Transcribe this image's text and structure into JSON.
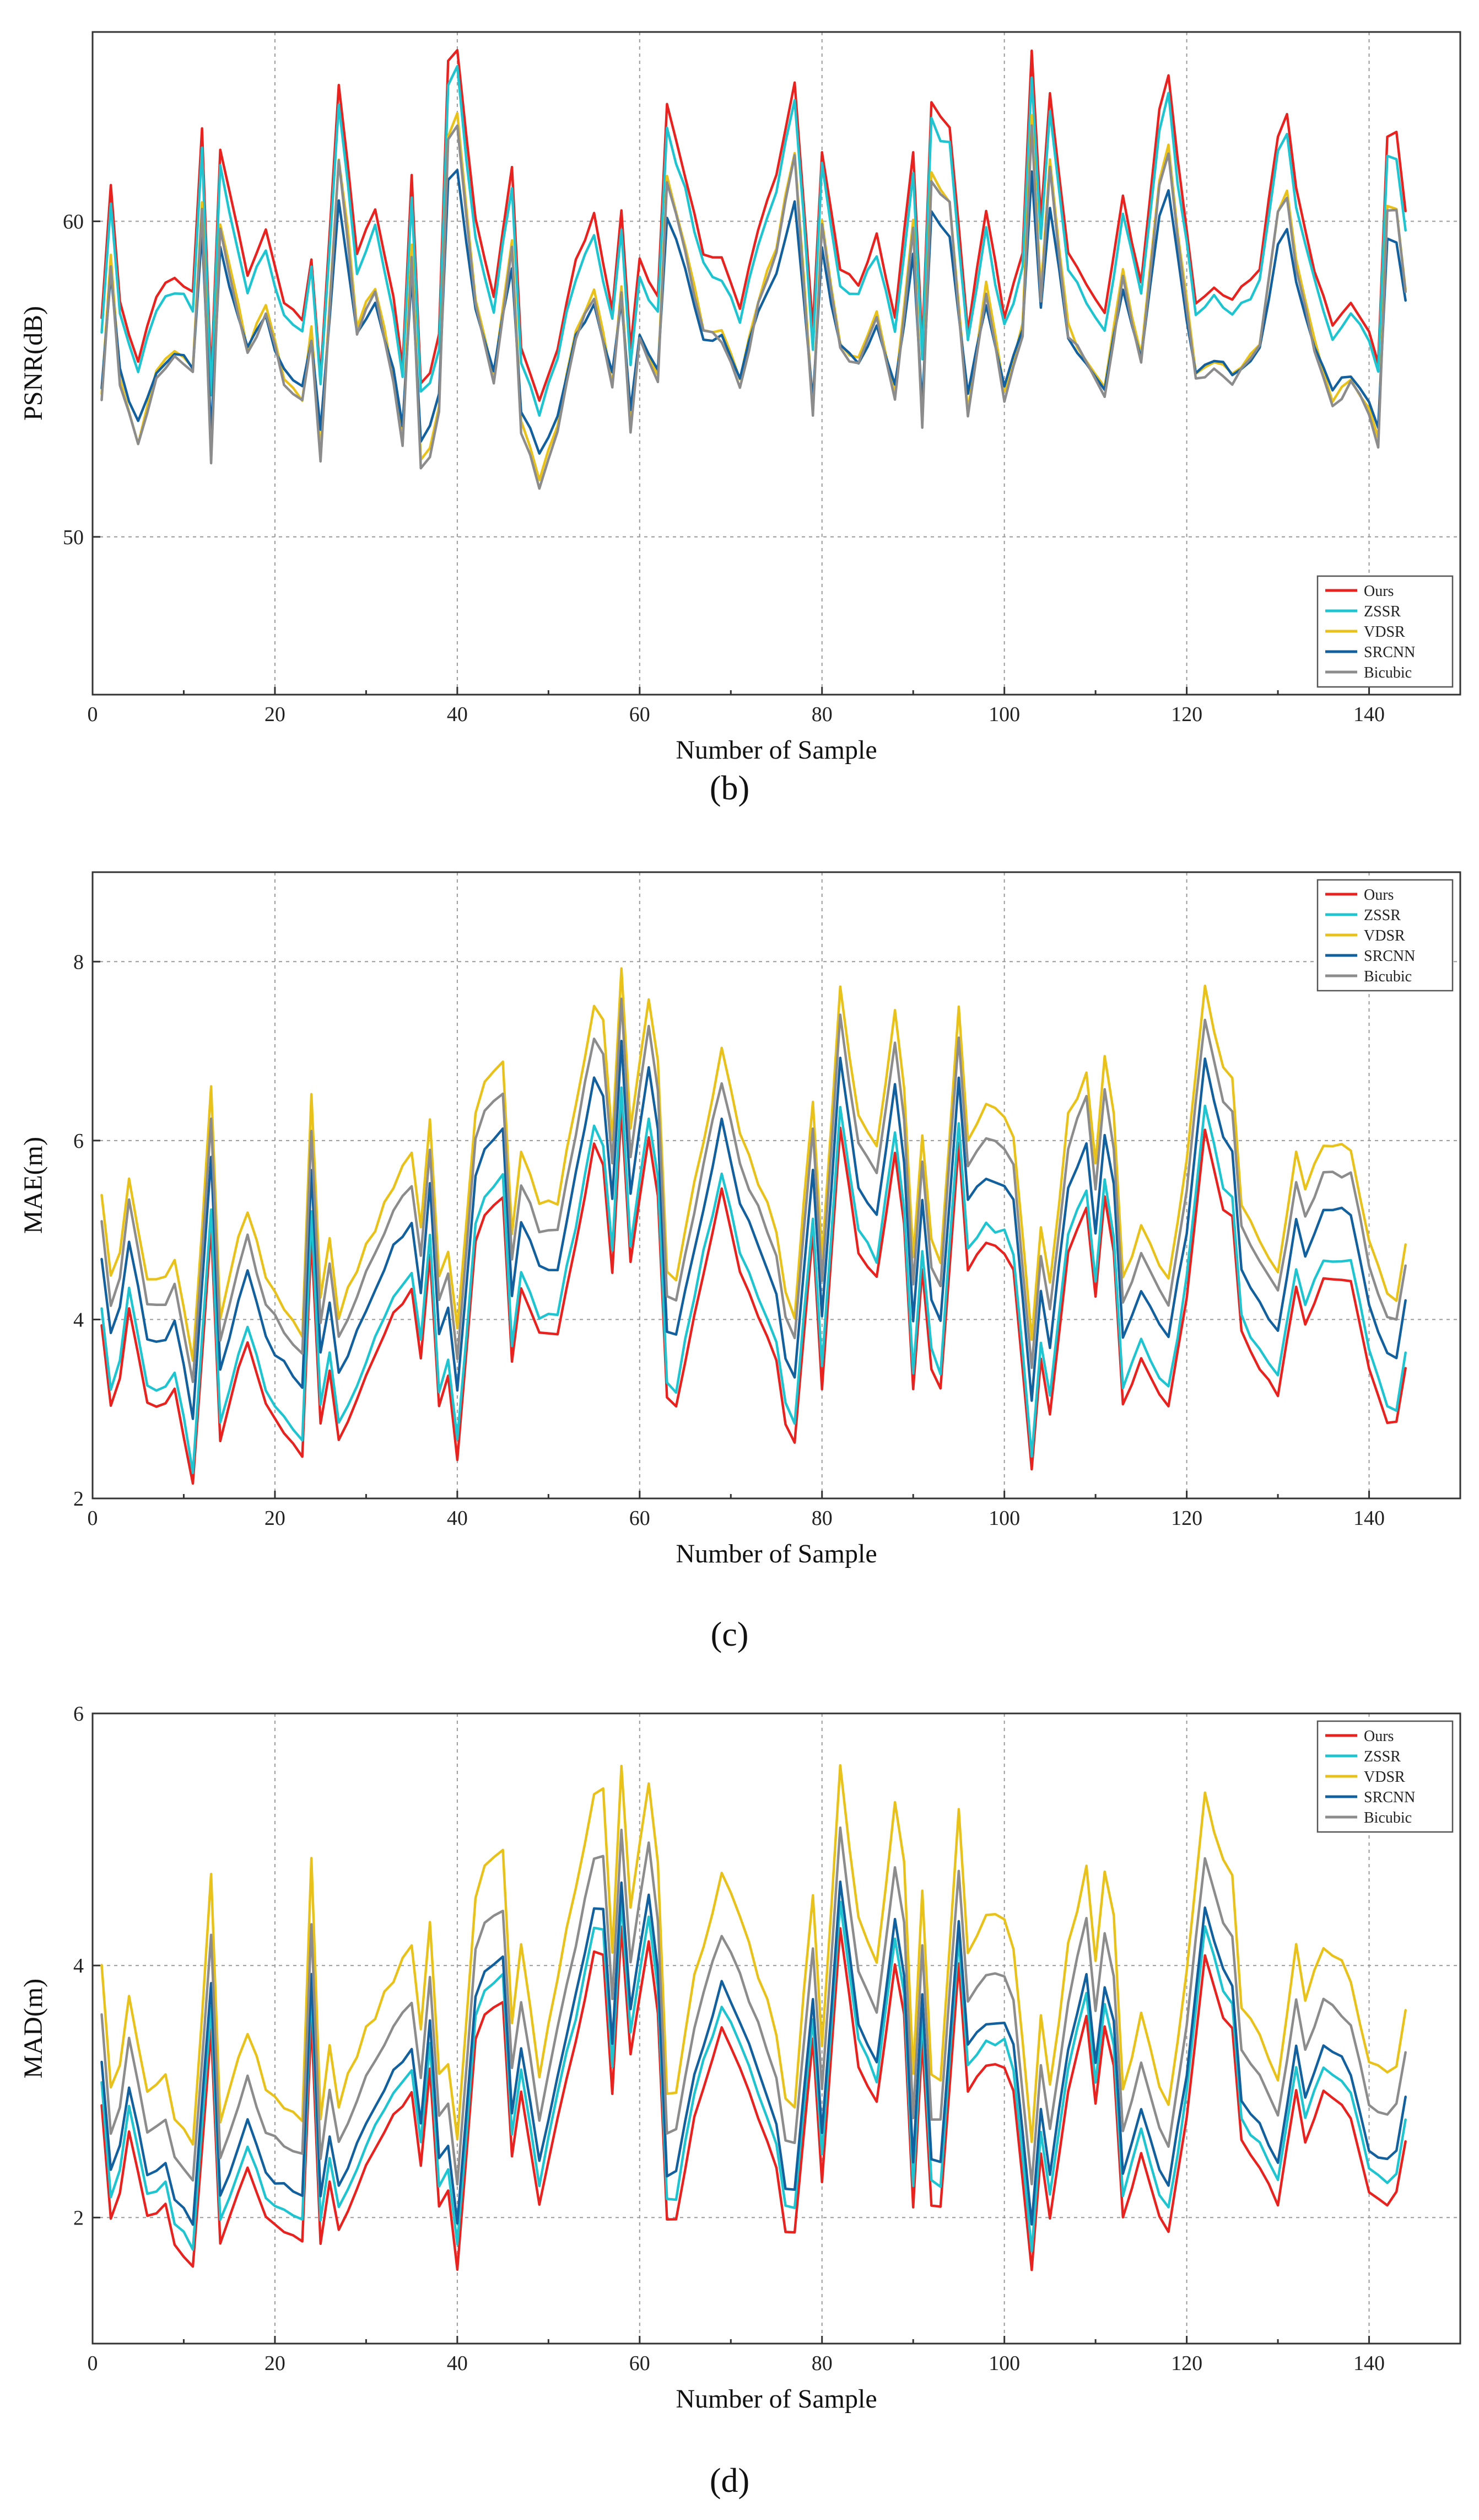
{
  "chart_data": [
    {
      "type": "line",
      "caption": "(b)",
      "title": "",
      "xlabel": "Number of Sample",
      "ylabel": "PSNR(dB)",
      "xlim": [
        0,
        150
      ],
      "ylim": [
        45,
        66
      ],
      "xticks": [
        0,
        20,
        40,
        60,
        80,
        100,
        120,
        140
      ],
      "yticks": [
        50,
        60
      ],
      "grid": true,
      "legend_position": "bottom-right",
      "keypoints": [
        [
          1,
          5.5
        ],
        [
          2,
          9.7
        ],
        [
          3,
          6.0
        ],
        [
          5,
          4.0
        ],
        [
          7,
          6.2
        ],
        [
          9,
          6.8
        ],
        [
          11,
          6.2
        ],
        [
          12,
          11.5
        ],
        [
          13,
          3.5
        ],
        [
          14,
          10.8
        ],
        [
          17,
          6.8
        ],
        [
          19,
          8.2
        ],
        [
          21,
          6.0
        ],
        [
          23,
          5.3
        ],
        [
          24,
          7.4
        ],
        [
          25,
          3.6
        ],
        [
          27,
          12.8
        ],
        [
          28,
          10.4
        ],
        [
          29,
          7.5
        ],
        [
          31,
          8.8
        ],
        [
          33,
          6.0
        ],
        [
          34,
          4.0
        ],
        [
          35,
          10.0
        ],
        [
          36,
          3.3
        ],
        [
          37,
          3.8
        ],
        [
          38,
          5.0
        ],
        [
          39,
          13.5
        ],
        [
          40,
          14.0
        ],
        [
          42,
          8.5
        ],
        [
          44,
          6.0
        ],
        [
          46,
          10.3
        ],
        [
          47,
          4.5
        ],
        [
          49,
          2.8
        ],
        [
          51,
          4.5
        ],
        [
          53,
          7.3
        ],
        [
          55,
          8.7
        ],
        [
          57,
          5.8
        ],
        [
          58,
          8.8
        ],
        [
          59,
          4.5
        ],
        [
          60,
          7.3
        ],
        [
          62,
          6.0
        ],
        [
          63,
          12.3
        ],
        [
          65,
          10.0
        ],
        [
          67,
          7.5
        ],
        [
          69,
          7.3
        ],
        [
          71,
          5.8
        ],
        [
          73,
          8.3
        ],
        [
          75,
          10.0
        ],
        [
          77,
          13.0
        ],
        [
          79,
          5.0
        ],
        [
          80,
          10.8
        ],
        [
          82,
          7.0
        ],
        [
          84,
          6.5
        ],
        [
          86,
          8.0
        ],
        [
          88,
          5.4
        ],
        [
          90,
          10.8
        ],
        [
          91,
          4.5
        ],
        [
          92,
          12.3
        ],
        [
          94,
          11.5
        ],
        [
          96,
          5.0
        ],
        [
          98,
          8.8
        ],
        [
          100,
          5.5
        ],
        [
          102,
          7.5
        ],
        [
          103,
          14.0
        ],
        [
          104,
          8.5
        ],
        [
          105,
          12.6
        ],
        [
          107,
          7.5
        ],
        [
          109,
          6.5
        ],
        [
          111,
          5.5
        ],
        [
          113,
          9.3
        ],
        [
          115,
          6.5
        ],
        [
          117,
          12.0
        ],
        [
          118,
          13.2
        ],
        [
          119,
          10.5
        ],
        [
          121,
          6.0
        ],
        [
          123,
          6.5
        ],
        [
          125,
          6.0
        ],
        [
          128,
          7.0
        ],
        [
          130,
          11.2
        ],
        [
          131,
          11.8
        ],
        [
          132,
          9.5
        ],
        [
          134,
          7.0
        ],
        [
          136,
          5.2
        ],
        [
          138,
          6.0
        ],
        [
          140,
          5.0
        ],
        [
          141,
          4.0
        ],
        [
          142,
          11.2
        ],
        [
          143,
          11.3
        ],
        [
          144,
          8.8
        ]
      ],
      "series": [
        {
          "name": "Ours",
          "color": "#e8221f",
          "scale": 1.0,
          "offset": 51.5,
          "seed": 11,
          "noise": 0.12
        },
        {
          "name": "ZSSR",
          "color": "#1ec4cf",
          "scale": 0.96,
          "offset": 51.3,
          "seed": 23,
          "noise": 0.2
        },
        {
          "name": "VDSR",
          "color": "#e8c21a",
          "scale": 1.02,
          "offset": 49.0,
          "seed": 37,
          "noise": 0.15
        },
        {
          "name": "SRCNN",
          "color": "#13609f",
          "scale": 0.8,
          "offset": 50.4,
          "seed": 41,
          "noise": 0.18
        },
        {
          "name": "Bicubic",
          "color": "#8c8c8c",
          "scale": 1.02,
          "offset": 48.8,
          "seed": 53,
          "noise": 0.15
        }
      ]
    },
    {
      "type": "line",
      "caption": "(c)",
      "title": "",
      "xlabel": "Number of Sample",
      "ylabel": "MAE(m)",
      "xlim": [
        0,
        150
      ],
      "ylim": [
        2,
        9
      ],
      "xticks": [
        0,
        20,
        40,
        60,
        80,
        100,
        120,
        140
      ],
      "yticks": [
        2,
        4,
        6,
        8
      ],
      "grid": true,
      "legend_position": "top-right",
      "keypoints": [
        [
          1,
          2.4
        ],
        [
          2,
          1.5
        ],
        [
          3,
          1.8
        ],
        [
          4,
          2.6
        ],
        [
          6,
          1.5
        ],
        [
          8,
          1.5
        ],
        [
          9,
          1.7
        ],
        [
          11,
          0.6
        ],
        [
          13,
          3.5
        ],
        [
          14,
          1.1
        ],
        [
          16,
          1.9
        ],
        [
          17,
          2.2
        ],
        [
          19,
          1.5
        ],
        [
          21,
          1.2
        ],
        [
          23,
          0.9
        ],
        [
          24,
          3.4
        ],
        [
          25,
          1.3
        ],
        [
          26,
          1.9
        ],
        [
          27,
          1.1
        ],
        [
          30,
          1.8
        ],
        [
          33,
          2.5
        ],
        [
          35,
          2.8
        ],
        [
          36,
          2.0
        ],
        [
          37,
          3.2
        ],
        [
          38,
          1.5
        ],
        [
          39,
          1.8
        ],
        [
          40,
          0.9
        ],
        [
          42,
          3.3
        ],
        [
          43,
          3.6
        ],
        [
          45,
          3.8
        ],
        [
          46,
          2.0
        ],
        [
          47,
          2.8
        ],
        [
          49,
          2.3
        ],
        [
          51,
          2.3
        ],
        [
          53,
          3.3
        ],
        [
          55,
          4.4
        ],
        [
          56,
          4.2
        ],
        [
          57,
          3.0
        ],
        [
          58,
          4.8
        ],
        [
          59,
          3.1
        ],
        [
          61,
          4.5
        ],
        [
          62,
          3.8
        ],
        [
          63,
          1.6
        ],
        [
          64,
          1.5
        ],
        [
          66,
          2.5
        ],
        [
          69,
          3.9
        ],
        [
          71,
          3.0
        ],
        [
          73,
          2.5
        ],
        [
          75,
          2.0
        ],
        [
          76,
          1.3
        ],
        [
          77,
          1.1
        ],
        [
          79,
          3.4
        ],
        [
          80,
          1.7
        ],
        [
          82,
          4.6
        ],
        [
          84,
          3.2
        ],
        [
          86,
          2.9
        ],
        [
          88,
          4.3
        ],
        [
          89,
          3.5
        ],
        [
          90,
          1.7
        ],
        [
          91,
          3.0
        ],
        [
          92,
          1.9
        ],
        [
          93,
          1.7
        ],
        [
          95,
          4.4
        ],
        [
          96,
          3.0
        ],
        [
          98,
          3.3
        ],
        [
          100,
          3.2
        ],
        [
          101,
          3.0
        ],
        [
          103,
          0.8
        ],
        [
          104,
          2.0
        ],
        [
          105,
          1.4
        ],
        [
          107,
          3.2
        ],
        [
          109,
          3.7
        ],
        [
          110,
          2.7
        ],
        [
          111,
          3.8
        ],
        [
          112,
          3.2
        ],
        [
          113,
          1.5
        ],
        [
          115,
          2.0
        ],
        [
          117,
          1.6
        ],
        [
          118,
          1.5
        ],
        [
          120,
          2.7
        ],
        [
          122,
          4.6
        ],
        [
          124,
          3.7
        ],
        [
          125,
          3.6
        ],
        [
          126,
          2.3
        ],
        [
          128,
          1.9
        ],
        [
          130,
          1.6
        ],
        [
          132,
          2.8
        ],
        [
          133,
          2.4
        ],
        [
          135,
          2.9
        ],
        [
          137,
          2.9
        ],
        [
          138,
          2.9
        ],
        [
          139,
          2.4
        ],
        [
          140,
          1.9
        ],
        [
          142,
          1.3
        ],
        [
          143,
          1.3
        ],
        [
          144,
          1.9
        ]
      ],
      "series": [
        {
          "name": "Ours",
          "color": "#e8221f",
          "scale": 1.0,
          "offset": 1.55,
          "seed": 11,
          "noise": 0.03
        },
        {
          "name": "ZSSR",
          "color": "#1ec4cf",
          "scale": 1.02,
          "offset": 1.7,
          "seed": 23,
          "noise": 0.05
        },
        {
          "name": "VDSR",
          "color": "#e8c21a",
          "scale": 1.05,
          "offset": 2.9,
          "seed": 37,
          "noise": 0.06
        },
        {
          "name": "SRCNN",
          "color": "#13609f",
          "scale": 1.0,
          "offset": 2.3,
          "seed": 41,
          "noise": 0.05
        },
        {
          "name": "Bicubic",
          "color": "#8c8c8c",
          "scale": 1.03,
          "offset": 2.65,
          "seed": 53,
          "noise": 0.05
        }
      ]
    },
    {
      "type": "line",
      "caption": "(d)",
      "title": "",
      "xlabel": "Number of Sample",
      "ylabel": "MAD(m)",
      "xlim": [
        0,
        150
      ],
      "ylim": [
        1,
        6
      ],
      "xticks": [
        0,
        20,
        40,
        60,
        80,
        100,
        120,
        140
      ],
      "yticks": [
        2,
        4,
        6
      ],
      "grid": true,
      "legend_position": "top-right",
      "keypoints": [
        [
          1,
          1.9
        ],
        [
          2,
          1.0
        ],
        [
          3,
          1.2
        ],
        [
          4,
          1.7
        ],
        [
          6,
          1.0
        ],
        [
          8,
          1.1
        ],
        [
          9,
          0.8
        ],
        [
          11,
          0.6
        ],
        [
          13,
          2.5
        ],
        [
          14,
          0.8
        ],
        [
          16,
          1.2
        ],
        [
          17,
          1.4
        ],
        [
          19,
          1.0
        ],
        [
          21,
          0.9
        ],
        [
          23,
          0.8
        ],
        [
          24,
          2.6
        ],
        [
          25,
          0.8
        ],
        [
          26,
          1.3
        ],
        [
          27,
          0.9
        ],
        [
          30,
          1.4
        ],
        [
          33,
          1.8
        ],
        [
          35,
          2.0
        ],
        [
          36,
          1.4
        ],
        [
          37,
          2.2
        ],
        [
          38,
          1.1
        ],
        [
          39,
          1.2
        ],
        [
          40,
          0.6
        ],
        [
          42,
          2.4
        ],
        [
          43,
          2.6
        ],
        [
          45,
          2.7
        ],
        [
          46,
          1.5
        ],
        [
          47,
          2.0
        ],
        [
          49,
          1.1
        ],
        [
          51,
          1.8
        ],
        [
          53,
          2.4
        ],
        [
          55,
          3.1
        ],
        [
          56,
          3.1
        ],
        [
          57,
          2.0
        ],
        [
          58,
          3.3
        ],
        [
          59,
          2.3
        ],
        [
          61,
          3.2
        ],
        [
          62,
          2.6
        ],
        [
          63,
          1.0
        ],
        [
          64,
          1.0
        ],
        [
          66,
          1.8
        ],
        [
          69,
          2.5
        ],
        [
          71,
          2.2
        ],
        [
          73,
          1.8
        ],
        [
          75,
          1.4
        ],
        [
          76,
          0.9
        ],
        [
          77,
          0.9
        ],
        [
          79,
          2.4
        ],
        [
          80,
          1.3
        ],
        [
          82,
          3.3
        ],
        [
          84,
          2.2
        ],
        [
          86,
          1.9
        ],
        [
          88,
          3.0
        ],
        [
          89,
          2.6
        ],
        [
          90,
          1.1
        ],
        [
          91,
          2.4
        ],
        [
          92,
          1.1
        ],
        [
          93,
          1.1
        ],
        [
          95,
          3.0
        ],
        [
          96,
          2.0
        ],
        [
          98,
          2.2
        ],
        [
          100,
          2.2
        ],
        [
          101,
          2.0
        ],
        [
          103,
          0.6
        ],
        [
          104,
          1.5
        ],
        [
          105,
          1.0
        ],
        [
          107,
          2.0
        ],
        [
          109,
          2.6
        ],
        [
          110,
          1.9
        ],
        [
          111,
          2.5
        ],
        [
          112,
          2.2
        ],
        [
          113,
          1.0
        ],
        [
          115,
          1.5
        ],
        [
          117,
          1.0
        ],
        [
          118,
          0.9
        ],
        [
          120,
          1.8
        ],
        [
          122,
          3.1
        ],
        [
          124,
          2.6
        ],
        [
          125,
          2.5
        ],
        [
          126,
          1.6
        ],
        [
          128,
          1.4
        ],
        [
          130,
          1.1
        ],
        [
          132,
          2.0
        ],
        [
          133,
          1.6
        ],
        [
          135,
          2.0
        ],
        [
          137,
          1.9
        ],
        [
          138,
          1.8
        ],
        [
          139,
          1.5
        ],
        [
          140,
          1.2
        ],
        [
          142,
          1.1
        ],
        [
          143,
          1.2
        ],
        [
          144,
          1.6
        ]
      ],
      "series": [
        {
          "name": "Ours",
          "color": "#e8221f",
          "scale": 1.0,
          "offset": 1.0,
          "seed": 11,
          "noise": 0.02
        },
        {
          "name": "ZSSR",
          "color": "#1ec4cf",
          "scale": 1.02,
          "offset": 1.15,
          "seed": 23,
          "noise": 0.03
        },
        {
          "name": "VDSR",
          "color": "#e8c21a",
          "scale": 1.12,
          "offset": 1.9,
          "seed": 37,
          "noise": 0.05
        },
        {
          "name": "SRCNN",
          "color": "#13609f",
          "scale": 1.0,
          "offset": 1.35,
          "seed": 41,
          "noise": 0.03
        },
        {
          "name": "Bicubic",
          "color": "#8c8c8c",
          "scale": 1.04,
          "offset": 1.65,
          "seed": 53,
          "noise": 0.03
        }
      ]
    }
  ]
}
